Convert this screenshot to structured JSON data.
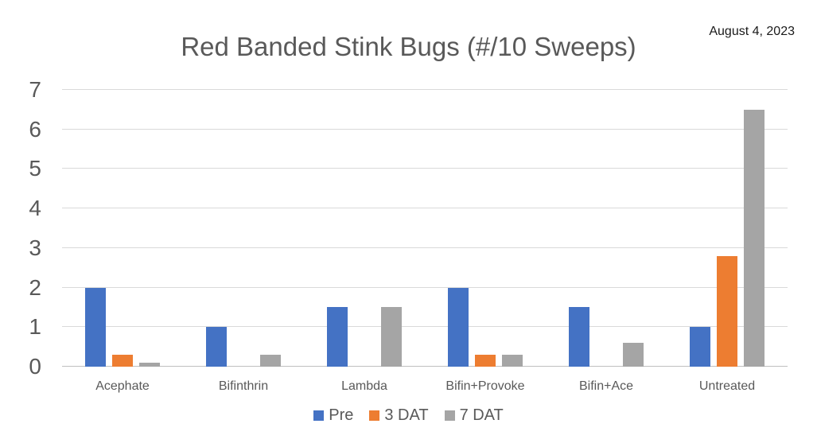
{
  "header": {
    "date": "August 4, 2023"
  },
  "chart_data": {
    "type": "bar",
    "title": "Red Banded Stink Bugs (#/10 Sweeps)",
    "categories": [
      "Acephate",
      "Bifinthrin",
      "Lambda",
      "Bifin+Provoke",
      "Bifin+Ace",
      "Untreated"
    ],
    "series": [
      {
        "name": "Pre",
        "color": "#4472C4",
        "values": [
          2,
          1,
          1.5,
          2,
          1.5,
          1
        ]
      },
      {
        "name": "3 DAT",
        "color": "#ED7D31",
        "values": [
          0.3,
          0,
          0,
          0.3,
          0,
          2.8
        ]
      },
      {
        "name": "7 DAT",
        "color": "#A5A5A5",
        "values": [
          0.1,
          0.3,
          1.5,
          0.3,
          0.6,
          6.5
        ]
      }
    ],
    "xlabel": "",
    "ylabel": "",
    "ylim": [
      0,
      7
    ],
    "yticks": [
      0,
      1,
      2,
      3,
      4,
      5,
      6,
      7
    ],
    "grid": true,
    "legend_position": "bottom",
    "colors": {
      "title": "#595959",
      "axis_text": "#595959",
      "gridline": "#D9D9D9",
      "axis_line": "#BFBFBF",
      "date_text": "#1a1a1a"
    }
  }
}
